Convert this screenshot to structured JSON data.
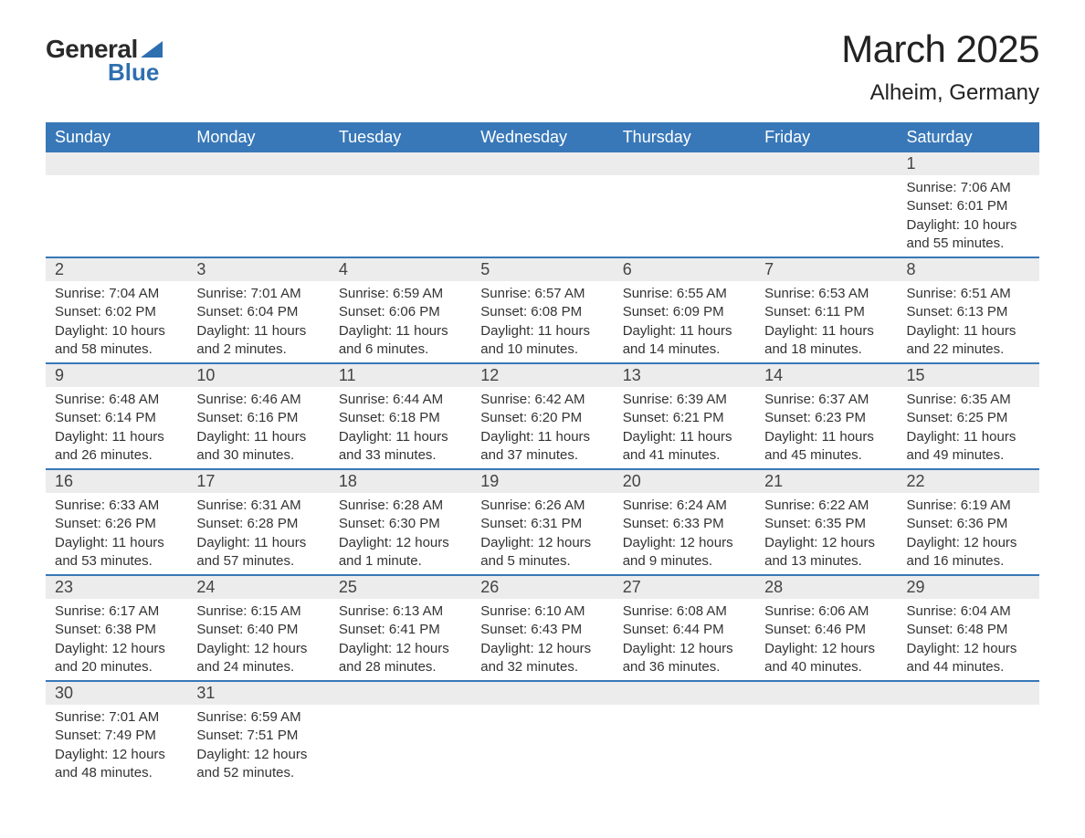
{
  "logo": {
    "text_general": "General",
    "text_blue": "Blue",
    "brand_color": "#2e6fb0"
  },
  "title": "March 2025",
  "location": "Alheim, Germany",
  "colors": {
    "header_bg": "#3878b8",
    "header_text": "#ffffff",
    "daynum_bg": "#ececec",
    "row_border": "#3878b8",
    "body_text": "#333333"
  },
  "weekdays": [
    "Sunday",
    "Monday",
    "Tuesday",
    "Wednesday",
    "Thursday",
    "Friday",
    "Saturday"
  ],
  "weeks": [
    [
      {
        "day": "",
        "sunrise": "",
        "sunset": "",
        "daylight": ""
      },
      {
        "day": "",
        "sunrise": "",
        "sunset": "",
        "daylight": ""
      },
      {
        "day": "",
        "sunrise": "",
        "sunset": "",
        "daylight": ""
      },
      {
        "day": "",
        "sunrise": "",
        "sunset": "",
        "daylight": ""
      },
      {
        "day": "",
        "sunrise": "",
        "sunset": "",
        "daylight": ""
      },
      {
        "day": "",
        "sunrise": "",
        "sunset": "",
        "daylight": ""
      },
      {
        "day": "1",
        "sunrise": "Sunrise: 7:06 AM",
        "sunset": "Sunset: 6:01 PM",
        "daylight": "Daylight: 10 hours and 55 minutes."
      }
    ],
    [
      {
        "day": "2",
        "sunrise": "Sunrise: 7:04 AM",
        "sunset": "Sunset: 6:02 PM",
        "daylight": "Daylight: 10 hours and 58 minutes."
      },
      {
        "day": "3",
        "sunrise": "Sunrise: 7:01 AM",
        "sunset": "Sunset: 6:04 PM",
        "daylight": "Daylight: 11 hours and 2 minutes."
      },
      {
        "day": "4",
        "sunrise": "Sunrise: 6:59 AM",
        "sunset": "Sunset: 6:06 PM",
        "daylight": "Daylight: 11 hours and 6 minutes."
      },
      {
        "day": "5",
        "sunrise": "Sunrise: 6:57 AM",
        "sunset": "Sunset: 6:08 PM",
        "daylight": "Daylight: 11 hours and 10 minutes."
      },
      {
        "day": "6",
        "sunrise": "Sunrise: 6:55 AM",
        "sunset": "Sunset: 6:09 PM",
        "daylight": "Daylight: 11 hours and 14 minutes."
      },
      {
        "day": "7",
        "sunrise": "Sunrise: 6:53 AM",
        "sunset": "Sunset: 6:11 PM",
        "daylight": "Daylight: 11 hours and 18 minutes."
      },
      {
        "day": "8",
        "sunrise": "Sunrise: 6:51 AM",
        "sunset": "Sunset: 6:13 PM",
        "daylight": "Daylight: 11 hours and 22 minutes."
      }
    ],
    [
      {
        "day": "9",
        "sunrise": "Sunrise: 6:48 AM",
        "sunset": "Sunset: 6:14 PM",
        "daylight": "Daylight: 11 hours and 26 minutes."
      },
      {
        "day": "10",
        "sunrise": "Sunrise: 6:46 AM",
        "sunset": "Sunset: 6:16 PM",
        "daylight": "Daylight: 11 hours and 30 minutes."
      },
      {
        "day": "11",
        "sunrise": "Sunrise: 6:44 AM",
        "sunset": "Sunset: 6:18 PM",
        "daylight": "Daylight: 11 hours and 33 minutes."
      },
      {
        "day": "12",
        "sunrise": "Sunrise: 6:42 AM",
        "sunset": "Sunset: 6:20 PM",
        "daylight": "Daylight: 11 hours and 37 minutes."
      },
      {
        "day": "13",
        "sunrise": "Sunrise: 6:39 AM",
        "sunset": "Sunset: 6:21 PM",
        "daylight": "Daylight: 11 hours and 41 minutes."
      },
      {
        "day": "14",
        "sunrise": "Sunrise: 6:37 AM",
        "sunset": "Sunset: 6:23 PM",
        "daylight": "Daylight: 11 hours and 45 minutes."
      },
      {
        "day": "15",
        "sunrise": "Sunrise: 6:35 AM",
        "sunset": "Sunset: 6:25 PM",
        "daylight": "Daylight: 11 hours and 49 minutes."
      }
    ],
    [
      {
        "day": "16",
        "sunrise": "Sunrise: 6:33 AM",
        "sunset": "Sunset: 6:26 PM",
        "daylight": "Daylight: 11 hours and 53 minutes."
      },
      {
        "day": "17",
        "sunrise": "Sunrise: 6:31 AM",
        "sunset": "Sunset: 6:28 PM",
        "daylight": "Daylight: 11 hours and 57 minutes."
      },
      {
        "day": "18",
        "sunrise": "Sunrise: 6:28 AM",
        "sunset": "Sunset: 6:30 PM",
        "daylight": "Daylight: 12 hours and 1 minute."
      },
      {
        "day": "19",
        "sunrise": "Sunrise: 6:26 AM",
        "sunset": "Sunset: 6:31 PM",
        "daylight": "Daylight: 12 hours and 5 minutes."
      },
      {
        "day": "20",
        "sunrise": "Sunrise: 6:24 AM",
        "sunset": "Sunset: 6:33 PM",
        "daylight": "Daylight: 12 hours and 9 minutes."
      },
      {
        "day": "21",
        "sunrise": "Sunrise: 6:22 AM",
        "sunset": "Sunset: 6:35 PM",
        "daylight": "Daylight: 12 hours and 13 minutes."
      },
      {
        "day": "22",
        "sunrise": "Sunrise: 6:19 AM",
        "sunset": "Sunset: 6:36 PM",
        "daylight": "Daylight: 12 hours and 16 minutes."
      }
    ],
    [
      {
        "day": "23",
        "sunrise": "Sunrise: 6:17 AM",
        "sunset": "Sunset: 6:38 PM",
        "daylight": "Daylight: 12 hours and 20 minutes."
      },
      {
        "day": "24",
        "sunrise": "Sunrise: 6:15 AM",
        "sunset": "Sunset: 6:40 PM",
        "daylight": "Daylight: 12 hours and 24 minutes."
      },
      {
        "day": "25",
        "sunrise": "Sunrise: 6:13 AM",
        "sunset": "Sunset: 6:41 PM",
        "daylight": "Daylight: 12 hours and 28 minutes."
      },
      {
        "day": "26",
        "sunrise": "Sunrise: 6:10 AM",
        "sunset": "Sunset: 6:43 PM",
        "daylight": "Daylight: 12 hours and 32 minutes."
      },
      {
        "day": "27",
        "sunrise": "Sunrise: 6:08 AM",
        "sunset": "Sunset: 6:44 PM",
        "daylight": "Daylight: 12 hours and 36 minutes."
      },
      {
        "day": "28",
        "sunrise": "Sunrise: 6:06 AM",
        "sunset": "Sunset: 6:46 PM",
        "daylight": "Daylight: 12 hours and 40 minutes."
      },
      {
        "day": "29",
        "sunrise": "Sunrise: 6:04 AM",
        "sunset": "Sunset: 6:48 PM",
        "daylight": "Daylight: 12 hours and 44 minutes."
      }
    ],
    [
      {
        "day": "30",
        "sunrise": "Sunrise: 7:01 AM",
        "sunset": "Sunset: 7:49 PM",
        "daylight": "Daylight: 12 hours and 48 minutes."
      },
      {
        "day": "31",
        "sunrise": "Sunrise: 6:59 AM",
        "sunset": "Sunset: 7:51 PM",
        "daylight": "Daylight: 12 hours and 52 minutes."
      },
      {
        "day": "",
        "sunrise": "",
        "sunset": "",
        "daylight": ""
      },
      {
        "day": "",
        "sunrise": "",
        "sunset": "",
        "daylight": ""
      },
      {
        "day": "",
        "sunrise": "",
        "sunset": "",
        "daylight": ""
      },
      {
        "day": "",
        "sunrise": "",
        "sunset": "",
        "daylight": ""
      },
      {
        "day": "",
        "sunrise": "",
        "sunset": "",
        "daylight": ""
      }
    ]
  ]
}
